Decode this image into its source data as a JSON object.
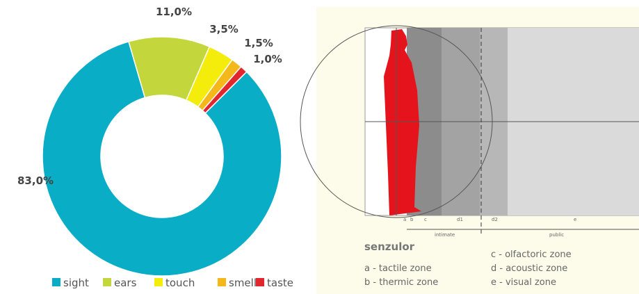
{
  "chart_data": {
    "type": "donut",
    "categories": [
      "sight",
      "ears",
      "touch",
      "smell",
      "taste"
    ],
    "values": [
      83.0,
      11.0,
      3.5,
      1.5,
      1.0
    ],
    "value_labels": [
      "83,0%",
      "11,0%",
      "3,5%",
      "1,5%",
      "1,0%"
    ],
    "colors": [
      "#0aadc6",
      "#c3d73c",
      "#f4ec0a",
      "#f4b81a",
      "#e1262d"
    ],
    "legend": "bottom"
  },
  "diagram": {
    "zone_letters": [
      "a",
      "b",
      "c",
      "d1",
      "d2",
      "e"
    ],
    "distances": [
      "intimate",
      "public"
    ],
    "heading": "senzulor",
    "zones": [
      "a - tactile zone",
      "b - thermic zone",
      "c - olfactoric zone",
      "d - acoustic zone",
      "e - visual zone"
    ]
  }
}
